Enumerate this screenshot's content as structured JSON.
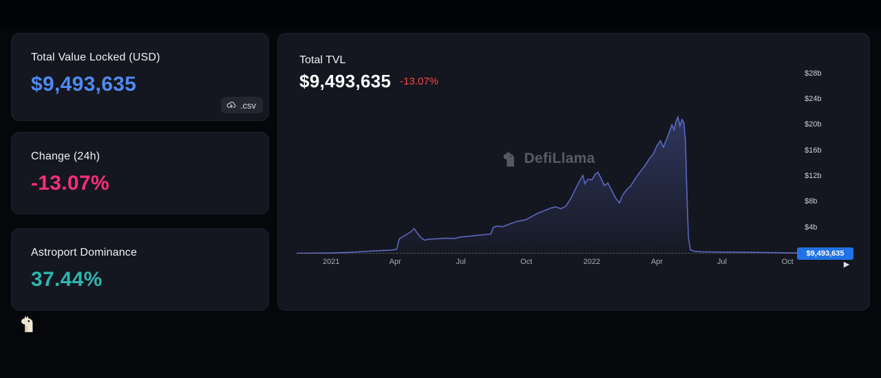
{
  "colors": {
    "background": "#05070b",
    "card": "#14171f",
    "tvl_blue": "#4f8af0",
    "change_pink": "#fa2c7f",
    "dominance_teal": "#2fb5af",
    "change_red": "#fb4646",
    "badge_blue": "#2172E5",
    "line_indigo": "#5d68c3"
  },
  "stat_cards": [
    {
      "title": "Total Value Locked (USD)",
      "value": "$9,493,635",
      "color": "#4f8af0",
      "download_label": ".csv"
    },
    {
      "title": "Change (24h)",
      "value": "-13.07%",
      "color": "#fa2c7f"
    },
    {
      "title": "Astroport Dominance",
      "value": "37.44%",
      "color": "#2fb5af"
    }
  ],
  "chart_panel": {
    "title": "Total TVL",
    "value": "$9,493,635",
    "change": "-13.07%",
    "watermark": "DefiLlama",
    "current_badge": "$9,493,635"
  },
  "chart_data": {
    "type": "area",
    "title": "Total TVL",
    "unit": "USD billions",
    "xlabel": "",
    "ylabel": "",
    "ymax": 30,
    "ylim": [
      0,
      30
    ],
    "grid": false,
    "legend": "none",
    "yticks": [
      {
        "value": 4,
        "label": "$4b"
      },
      {
        "value": 8,
        "label": "$8b"
      },
      {
        "value": 12,
        "label": "$12b"
      },
      {
        "value": 16,
        "label": "$16b"
      },
      {
        "value": 20,
        "label": "$20b"
      },
      {
        "value": 24,
        "label": "$24b"
      },
      {
        "value": 28,
        "label": "$28b"
      }
    ],
    "xticks": [
      {
        "pos": 0.069,
        "label": "2021"
      },
      {
        "pos": 0.197,
        "label": "Apr"
      },
      {
        "pos": 0.328,
        "label": "Jul"
      },
      {
        "pos": 0.459,
        "label": "Oct"
      },
      {
        "pos": 0.59,
        "label": "2022"
      },
      {
        "pos": 0.72,
        "label": "Apr"
      },
      {
        "pos": 0.85,
        "label": "Jul"
      },
      {
        "pos": 0.981,
        "label": "Oct"
      }
    ],
    "points": [
      [
        0.0,
        0.05
      ],
      [
        0.04,
        0.08
      ],
      [
        0.069,
        0.1
      ],
      [
        0.1,
        0.18
      ],
      [
        0.13,
        0.3
      ],
      [
        0.16,
        0.45
      ],
      [
        0.19,
        0.55
      ],
      [
        0.2,
        0.7
      ],
      [
        0.205,
        2.3
      ],
      [
        0.212,
        2.6
      ],
      [
        0.22,
        3.0
      ],
      [
        0.228,
        3.4
      ],
      [
        0.235,
        3.9
      ],
      [
        0.24,
        3.3
      ],
      [
        0.247,
        2.6
      ],
      [
        0.255,
        2.1
      ],
      [
        0.265,
        2.25
      ],
      [
        0.28,
        2.3
      ],
      [
        0.3,
        2.4
      ],
      [
        0.315,
        2.35
      ],
      [
        0.328,
        2.6
      ],
      [
        0.345,
        2.7
      ],
      [
        0.36,
        2.85
      ],
      [
        0.375,
        2.95
      ],
      [
        0.388,
        3.05
      ],
      [
        0.393,
        4.1
      ],
      [
        0.4,
        4.3
      ],
      [
        0.412,
        4.2
      ],
      [
        0.425,
        4.6
      ],
      [
        0.44,
        5.0
      ],
      [
        0.459,
        5.3
      ],
      [
        0.47,
        5.8
      ],
      [
        0.482,
        6.3
      ],
      [
        0.495,
        6.7
      ],
      [
        0.508,
        7.1
      ],
      [
        0.518,
        7.3
      ],
      [
        0.528,
        7.0
      ],
      [
        0.538,
        7.4
      ],
      [
        0.548,
        8.6
      ],
      [
        0.558,
        10.2
      ],
      [
        0.566,
        11.4
      ],
      [
        0.572,
        12.2
      ],
      [
        0.576,
        10.9
      ],
      [
        0.582,
        11.6
      ],
      [
        0.59,
        11.5
      ],
      [
        0.597,
        12.4
      ],
      [
        0.602,
        12.7
      ],
      [
        0.608,
        11.8
      ],
      [
        0.615,
        10.6
      ],
      [
        0.622,
        11.0
      ],
      [
        0.63,
        9.8
      ],
      [
        0.638,
        8.6
      ],
      [
        0.645,
        7.9
      ],
      [
        0.652,
        9.2
      ],
      [
        0.66,
        10.0
      ],
      [
        0.668,
        10.6
      ],
      [
        0.676,
        11.6
      ],
      [
        0.685,
        12.6
      ],
      [
        0.695,
        13.6
      ],
      [
        0.705,
        14.8
      ],
      [
        0.713,
        15.6
      ],
      [
        0.72,
        16.8
      ],
      [
        0.727,
        17.6
      ],
      [
        0.733,
        16.6
      ],
      [
        0.739,
        17.8
      ],
      [
        0.745,
        19.0
      ],
      [
        0.75,
        20.1
      ],
      [
        0.754,
        19.3
      ],
      [
        0.758,
        20.6
      ],
      [
        0.762,
        21.3
      ],
      [
        0.766,
        19.9
      ],
      [
        0.77,
        20.9
      ],
      [
        0.774,
        20.4
      ],
      [
        0.777,
        17.5
      ],
      [
        0.78,
        9.0
      ],
      [
        0.783,
        2.5
      ],
      [
        0.787,
        0.6
      ],
      [
        0.795,
        0.35
      ],
      [
        0.81,
        0.28
      ],
      [
        0.85,
        0.24
      ],
      [
        0.9,
        0.2
      ],
      [
        0.95,
        0.16
      ],
      [
        0.981,
        0.12
      ],
      [
        1.0,
        0.1
      ]
    ],
    "current_value_billions": 0.0095
  }
}
